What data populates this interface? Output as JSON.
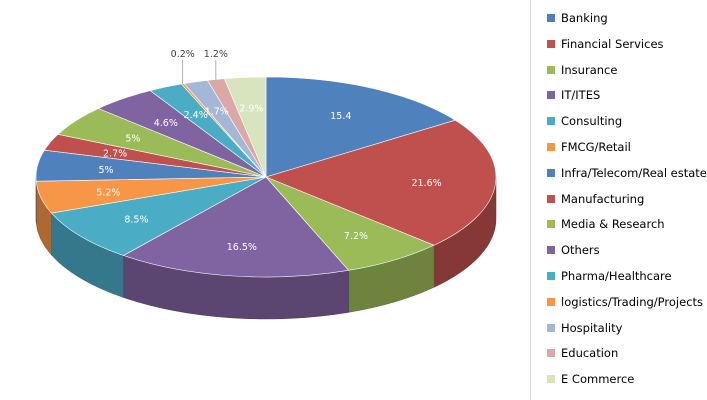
{
  "chart_data": {
    "type": "pie",
    "three_d": true,
    "legend_position": "right",
    "slices": [
      {
        "label": "Banking",
        "value": 15.4,
        "display": "15.4",
        "color": "#4f81bd"
      },
      {
        "label": "Financial Services",
        "value": 21.6,
        "display": "21.6%",
        "color": "#c0504d"
      },
      {
        "label": "Insurance",
        "value": 7.2,
        "display": "7.2%",
        "color": "#9bbb59"
      },
      {
        "label": "IT/ITES",
        "value": 16.5,
        "display": "16.5%",
        "color": "#8064a2"
      },
      {
        "label": "Consulting",
        "value": 8.5,
        "display": "8.5%",
        "color": "#4bacc6"
      },
      {
        "label": "FMCG/Retail",
        "value": 5.2,
        "display": "5.2%",
        "color": "#f79646"
      },
      {
        "label": "Infra/Telecom/Real estate",
        "value": 5,
        "display": "5%",
        "color": "#4f81bd"
      },
      {
        "label": "Manufacturing",
        "value": 2.7,
        "display": "2.7%",
        "color": "#c0504d"
      },
      {
        "label": "Media & Research",
        "value": 5,
        "display": "5%",
        "color": "#9bbb59"
      },
      {
        "label": "Others",
        "value": 4.6,
        "display": "4.6%",
        "color": "#8064a2"
      },
      {
        "label": "Pharma/Healthcare",
        "value": 2.4,
        "display": "2.4%",
        "color": "#4bacc6"
      },
      {
        "label": "logistics/Trading/Projects",
        "value": 0.2,
        "display": "0.2%",
        "color": "#f79646"
      },
      {
        "label": "Hospitality",
        "value": 1.7,
        "display": "1.7%",
        "color": "#a5b7d6"
      },
      {
        "label": "Education",
        "value": 1.2,
        "display": "1.2%",
        "color": "#dba8a7"
      },
      {
        "label": "E Commerce",
        "value": 2.9,
        "display": "2.9%",
        "color": "#d7e4bd"
      }
    ]
  }
}
